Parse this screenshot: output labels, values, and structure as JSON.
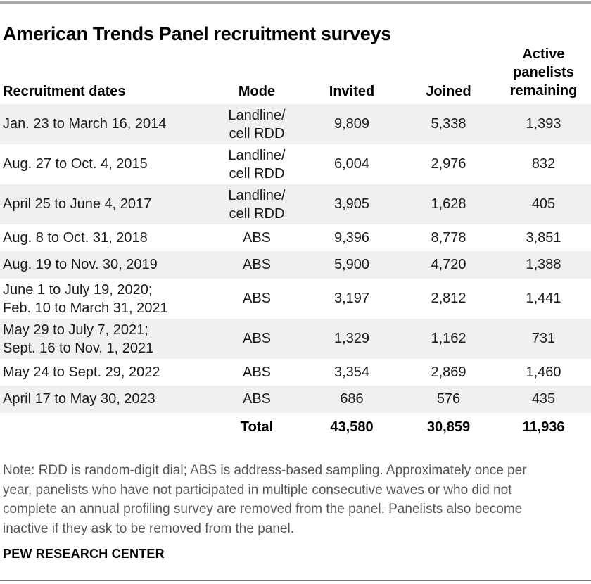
{
  "chart_data": {
    "type": "table",
    "title": "American Trends Panel recruitment surveys",
    "columns": [
      "Recruitment dates",
      "Mode",
      "Invited",
      "Joined",
      "Active\npanelists\nremaining"
    ],
    "rows": [
      {
        "dates": "Jan. 23 to March 16, 2014",
        "mode": "Landline/\ncell RDD",
        "invited": "9,809",
        "joined": "5,338",
        "remaining": "1,393"
      },
      {
        "dates": "Aug. 27 to Oct. 4, 2015",
        "mode": "Landline/\ncell RDD",
        "invited": "6,004",
        "joined": "2,976",
        "remaining": "832"
      },
      {
        "dates": "April 25 to June 4, 2017",
        "mode": "Landline/\ncell RDD",
        "invited": "3,905",
        "joined": "1,628",
        "remaining": "405"
      },
      {
        "dates": "Aug. 8 to Oct. 31, 2018",
        "mode": "ABS",
        "invited": "9,396",
        "joined": "8,778",
        "remaining": "3,851"
      },
      {
        "dates": "Aug. 19 to Nov. 30, 2019",
        "mode": "ABS",
        "invited": "5,900",
        "joined": "4,720",
        "remaining": "1,388"
      },
      {
        "dates": "June 1 to July 19, 2020;\nFeb. 10 to March 31, 2021",
        "mode": "ABS",
        "invited": "3,197",
        "joined": "2,812",
        "remaining": "1,441"
      },
      {
        "dates": "May 29 to July 7, 2021;\nSept. 16 to Nov. 1, 2021",
        "mode": "ABS",
        "invited": "1,329",
        "joined": "1,162",
        "remaining": "731"
      },
      {
        "dates": "May 24 to Sept. 29, 2022",
        "mode": "ABS",
        "invited": "3,354",
        "joined": "2,869",
        "remaining": "1,460"
      },
      {
        "dates": "April 17 to May 30, 2023",
        "mode": "ABS",
        "invited": "686",
        "joined": "576",
        "remaining": "435"
      }
    ],
    "total": {
      "label": "Total",
      "invited": "43,580",
      "joined": "30,859",
      "remaining": "11,936"
    },
    "note": "Note: RDD is random-digit dial; ABS is address-based sampling. Approximately once per\nyear, panelists who have not participated in multiple consecutive waves or who did not\ncomplete an annual profiling survey are removed from the panel. Panelists also become\ninactive if they ask to be removed from the panel.",
    "source": "PEW RESEARCH CENTER",
    "layout": {
      "grid": "off",
      "row_striping": "alternating, first data row shaded"
    }
  },
  "colors": {
    "stripe": "#f0f0f0",
    "top_rule": "#a8a8a8",
    "bottom_rule": "#7c7c7c",
    "body_text": "#1a1a1a",
    "note_text": "#555555",
    "title_text": "#000000"
  }
}
